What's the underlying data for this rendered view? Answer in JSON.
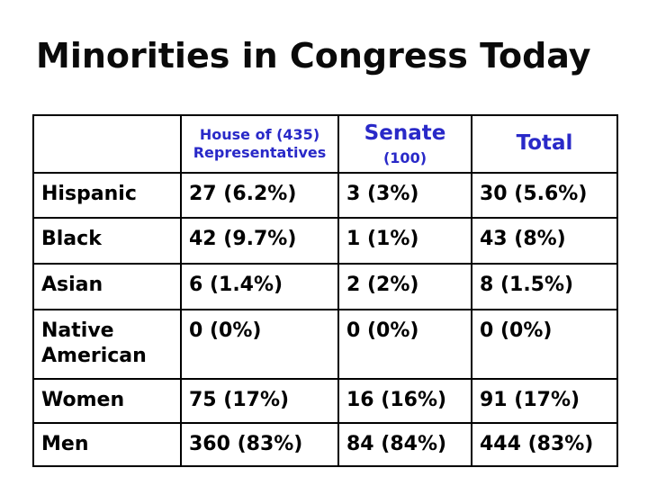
{
  "title": "Minorities in Congress Today",
  "colors": {
    "background": "#ffffff",
    "title_text": "#0a0a0a",
    "header_text": "#2929c8",
    "body_text": "#000000",
    "table_border": "#000000"
  },
  "table": {
    "header": {
      "house_line1": "House of (435)",
      "house_line2": "Representatives",
      "senate_main": "Senate",
      "senate_sub": "(100)",
      "total": "Total"
    }
  },
  "chart_data": {
    "type": "table",
    "title": "Minorities in Congress Today",
    "columns": [
      "",
      "House of (435) Representatives",
      "Senate (100)",
      "Total"
    ],
    "rows": [
      [
        "Hispanic",
        "27 (6.2%)",
        "3 (3%)",
        "30 (5.6%)"
      ],
      [
        "Black",
        "42 (9.7%)",
        "1 (1%)",
        "43 (8%)"
      ],
      [
        "Asian",
        "6 (1.4%)",
        "2 (2%)",
        "8 (1.5%)"
      ],
      [
        "Native American",
        "0 (0%)",
        "0 (0%)",
        "0 (0%)"
      ],
      [
        "Women",
        "75 (17%)",
        "16 (16%)",
        "91 (17%)"
      ],
      [
        "Men",
        "360 (83%)",
        "84 (84%)",
        "444 (83%)"
      ]
    ]
  }
}
